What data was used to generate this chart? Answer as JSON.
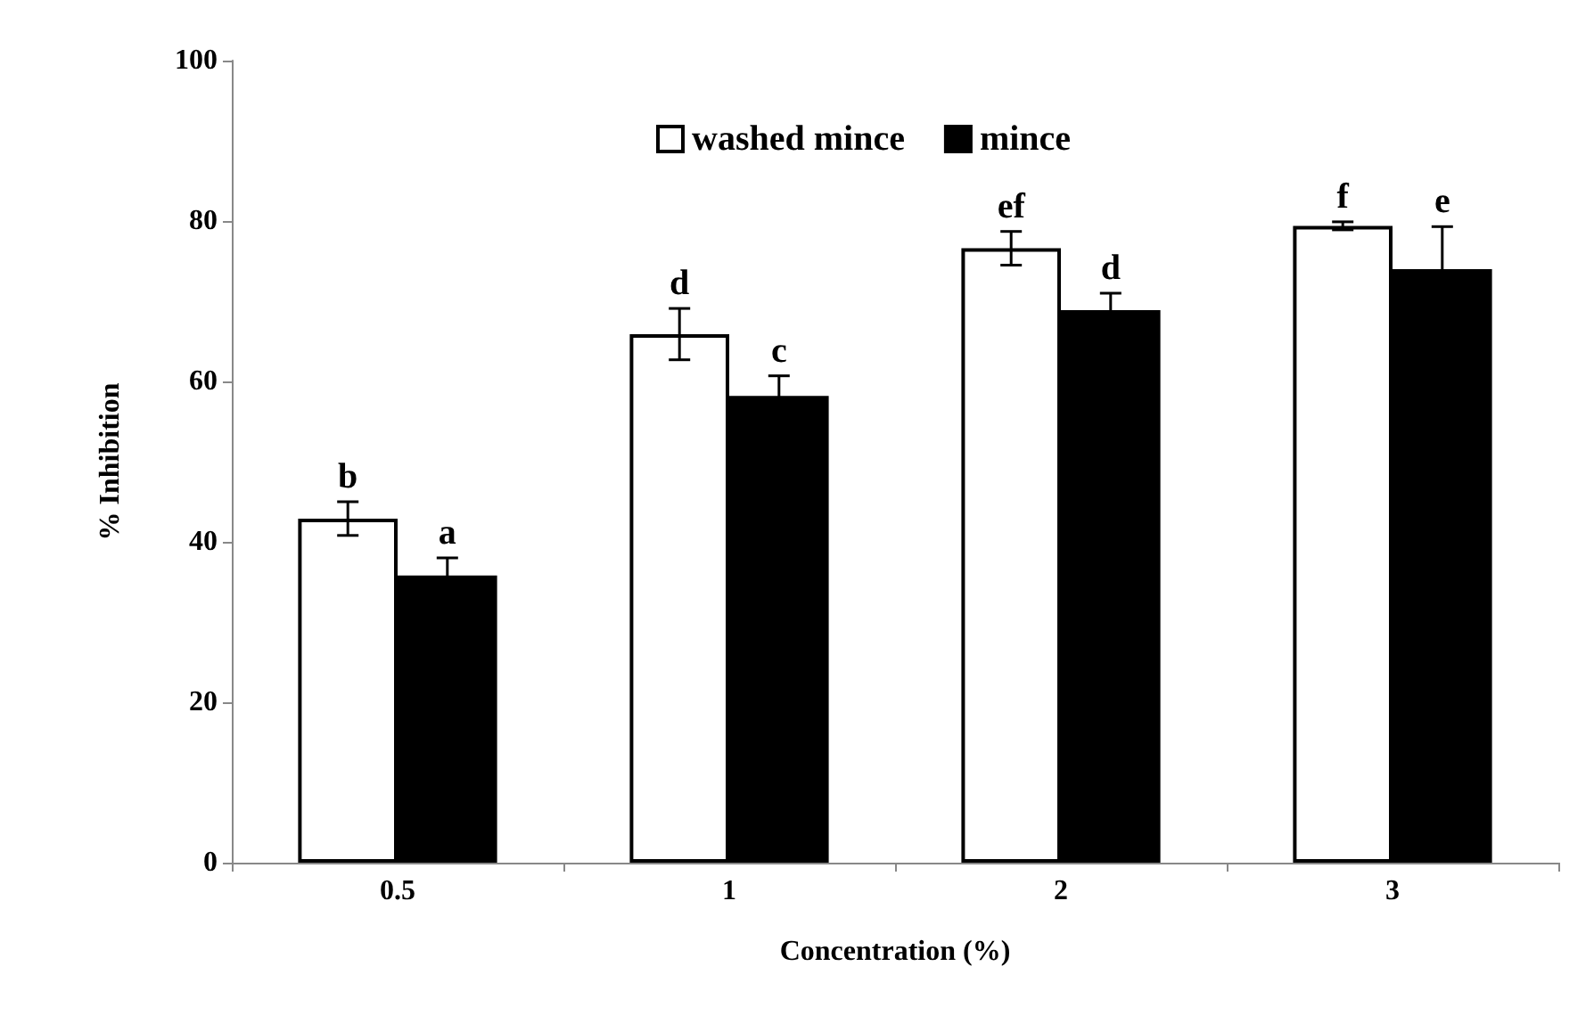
{
  "chart_data": {
    "type": "bar",
    "xlabel": "Concentration (%)",
    "ylabel": "% Inhibition",
    "categories": [
      "0.5",
      "1",
      "2",
      "3"
    ],
    "series": [
      {
        "name": "washed mince",
        "color": "#ffffff",
        "values": [
          42.9,
          65.9,
          76.6,
          79.4
        ],
        "errors": [
          2.1,
          3.2,
          2.1,
          0.5
        ]
      },
      {
        "name": "mince",
        "color": "#000000",
        "values": [
          35.8,
          58.2,
          68.9,
          74
        ],
        "errors": [
          2.2,
          2.5,
          2.1,
          5.3
        ]
      }
    ],
    "ylim": [
      0,
      100
    ],
    "yticks": [
      0,
      20,
      40,
      60,
      80,
      100
    ],
    "grid": false,
    "legend": "top",
    "annotations": [
      {
        "text": "b",
        "x": "0.5",
        "y": 42.9
      },
      {
        "text": "a",
        "x": "0.5",
        "y": 35.8
      },
      {
        "text": "d",
        "x": "1",
        "y": 65.9
      },
      {
        "text": "c",
        "x": "1",
        "y": 58.2
      },
      {
        "text": "ef",
        "x": "2",
        "y": 76.6
      },
      {
        "text": "d",
        "x": "2",
        "y": 68.9
      },
      {
        "text": "f",
        "x": "3",
        "y": 79.4
      },
      {
        "text": "e",
        "x": "3",
        "y": 74
      }
    ]
  }
}
